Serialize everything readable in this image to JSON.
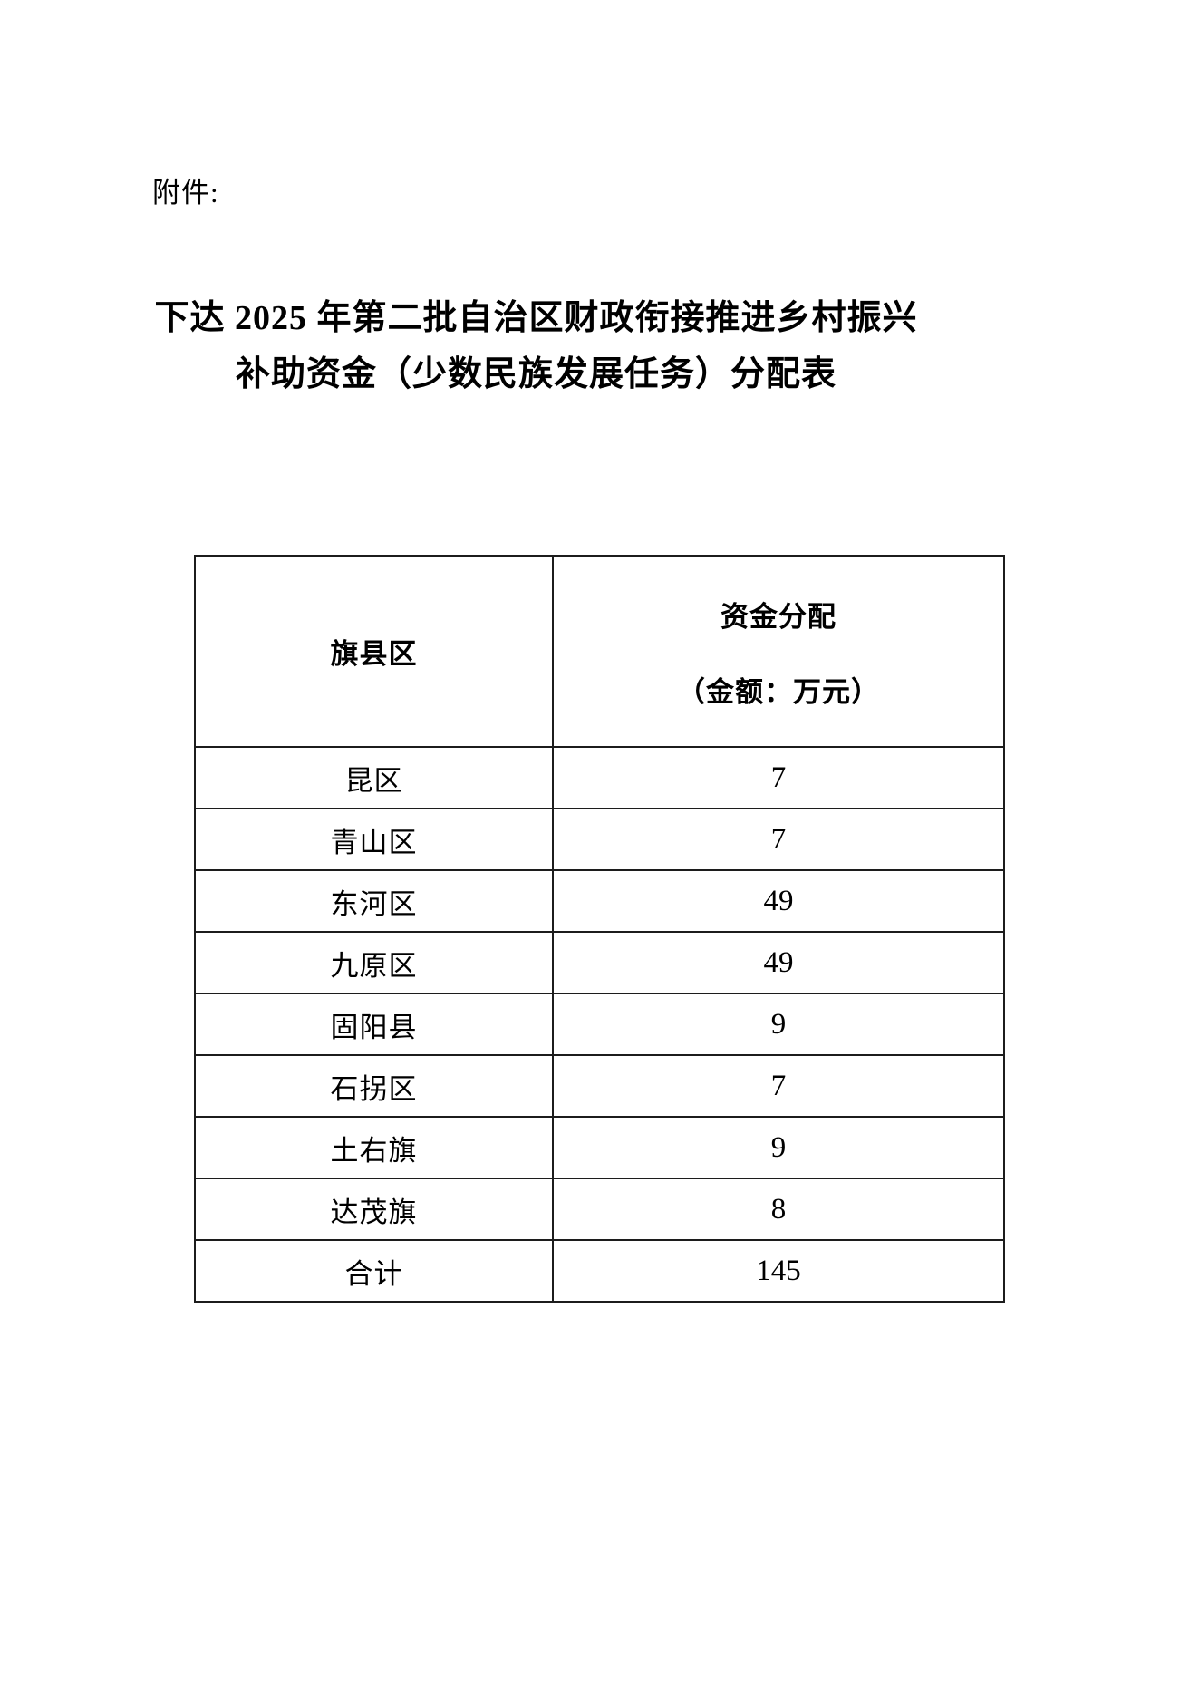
{
  "page": {
    "attachment_label": "附件:",
    "title_line1": "下达 2025 年第二批自治区财政衔接推进乡村振兴",
    "title_line2": "补助资金（少数民族发展任务）分配表"
  },
  "table": {
    "header": {
      "col1": "旗县区",
      "col2_line1": "资金分配",
      "col2_line2": "（金额：万元）"
    },
    "rows": [
      {
        "region": "昆区",
        "amount": "7"
      },
      {
        "region": "青山区",
        "amount": "7"
      },
      {
        "region": "东河区",
        "amount": "49"
      },
      {
        "region": "九原区",
        "amount": "49"
      },
      {
        "region": "固阳县",
        "amount": "9"
      },
      {
        "region": "石拐区",
        "amount": "7"
      },
      {
        "region": "土右旗",
        "amount": "9"
      },
      {
        "region": "达茂旗",
        "amount": "8"
      },
      {
        "region": "合计",
        "amount": "145"
      }
    ]
  }
}
